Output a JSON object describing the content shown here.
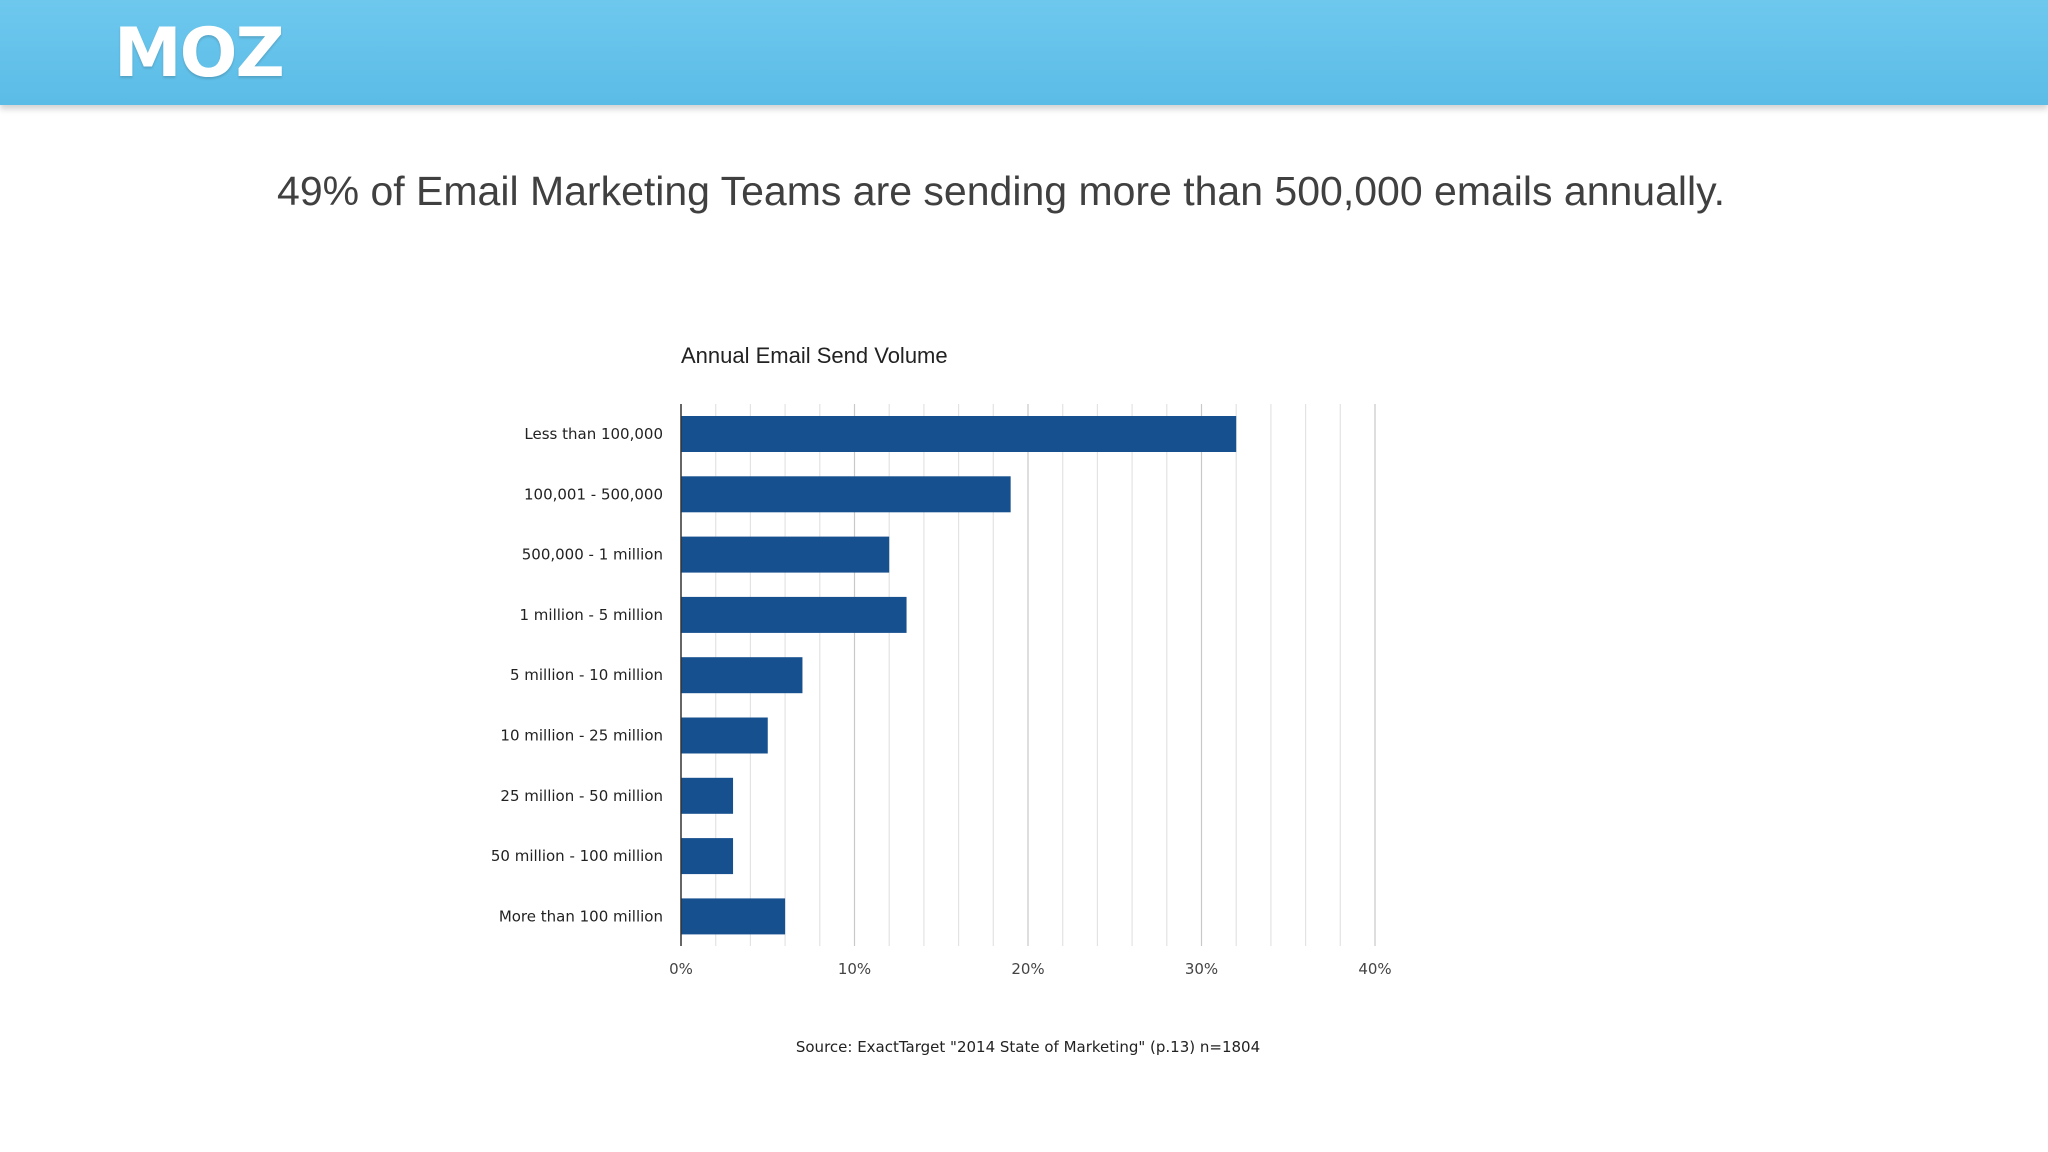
{
  "brand": {
    "logo_text": "MOZ",
    "header_color": "#5bbce6",
    "header_color_light": "#6ec8ee"
  },
  "slide": {
    "headline": "49% of Email Marketing Teams are sending more than 500,000 emails annually."
  },
  "chart_data": {
    "type": "bar",
    "orientation": "horizontal",
    "title": "Annual Email Send Volume",
    "categories": [
      "Less than 100,000",
      "100,001 - 500,000",
      "500,000 - 1 million",
      "1 million - 5 million",
      "5 million - 10 million",
      "10 million - 25 million",
      "25 million - 50 million",
      "50 million - 100 million",
      "More than 100 million"
    ],
    "values": [
      32,
      19,
      12,
      13,
      7,
      5,
      3,
      3,
      6
    ],
    "xlim": [
      0,
      40
    ],
    "x_ticks": [
      "0%",
      "10%",
      "20%",
      "30%",
      "40%"
    ],
    "x_tick_values": [
      0,
      10,
      20,
      30,
      40
    ],
    "minor_gridline_step": 2,
    "grid": true,
    "bar_color": "#17508f",
    "xlabel": "",
    "ylabel": "",
    "source": "Source: ExactTarget \"2014 State of Marketing\" (p.13) n=1804"
  }
}
